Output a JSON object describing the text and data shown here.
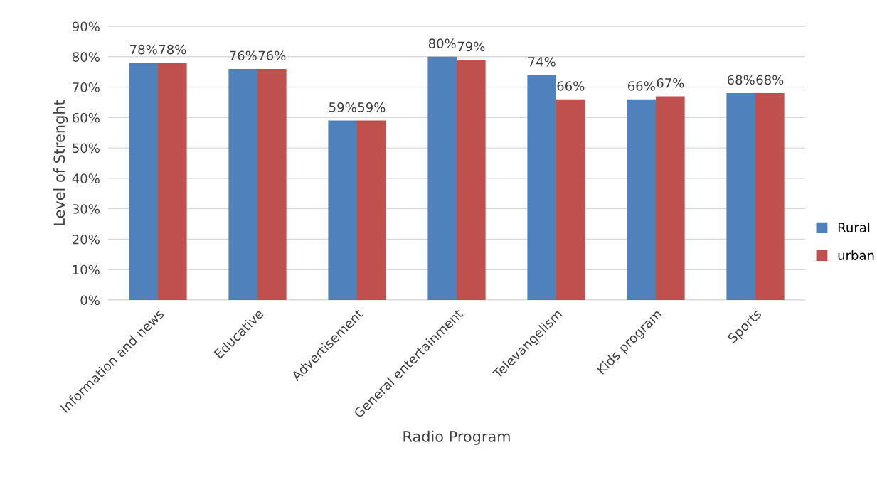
{
  "chart_data": {
    "type": "bar",
    "xlabel": "Radio Program",
    "ylabel": "Level of Strenght",
    "categories": [
      "Information and news",
      "Educative",
      "Advertisement",
      "General entertainment",
      "Televangelism",
      "Kids program",
      "Sports"
    ],
    "series": [
      {
        "name": "Rural",
        "color": "#4f81bd",
        "values": [
          78,
          76,
          59,
          80,
          74,
          66,
          68
        ],
        "value_labels": [
          "78%",
          "76%",
          "59%",
          "80%",
          "74%",
          "66%",
          "68%"
        ]
      },
      {
        "name": "urban",
        "color": "#c0504d",
        "values": [
          78,
          76,
          59,
          79,
          66,
          67,
          68
        ],
        "value_labels": [
          "78%",
          "76%",
          "59%",
          "79%",
          "66%",
          "67%",
          "68%"
        ]
      }
    ],
    "ylim": [
      0,
      90
    ],
    "yticks": [
      {
        "value": 0,
        "label": "0%"
      },
      {
        "value": 10,
        "label": "10%"
      },
      {
        "value": 20,
        "label": "20%"
      },
      {
        "value": 30,
        "label": "30%"
      },
      {
        "value": 40,
        "label": "40%"
      },
      {
        "value": 50,
        "label": "50%"
      },
      {
        "value": 60,
        "label": "60%"
      },
      {
        "value": 70,
        "label": "70%"
      },
      {
        "value": 80,
        "label": "80%"
      },
      {
        "value": 90,
        "label": "90%"
      }
    ],
    "grid": "y",
    "legend": "right"
  }
}
